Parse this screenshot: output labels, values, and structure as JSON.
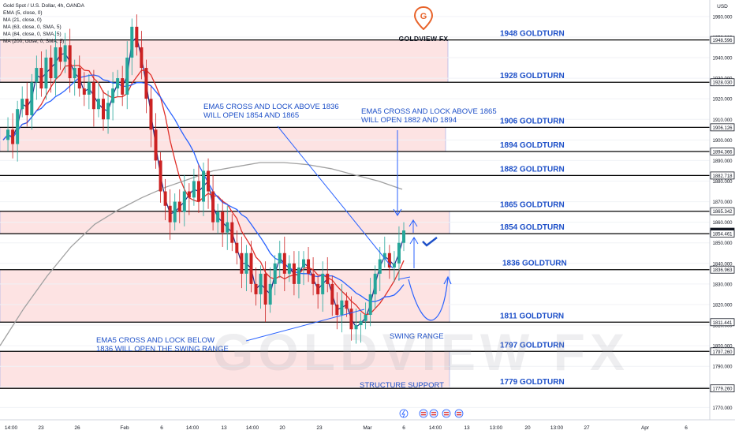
{
  "header": {
    "symbol": "Gold Spot / U.S. Dollar, 4h, OANDA",
    "indicators": [
      "EMA (5, close, 0)",
      "MA (21, close, 0)",
      "MA (63, close, 0, SMA, 5)",
      "MA (84, close, 0, SMA, 5)",
      "MA (200, close, 0, SMA, 5)"
    ],
    "currency": "USD"
  },
  "logo": {
    "text": "GOLDVIEW FX",
    "glyph": "G"
  },
  "watermark": "GOLDVIEW FX",
  "colors": {
    "bull": "#26a69a",
    "bear": "#ef5350",
    "candle": "#cc2222",
    "ema5": "#1e2a8a",
    "ma21": "#e0302a",
    "ma63": "#2962ff",
    "ma200": "#a0a0a0",
    "level": "#000000",
    "zone": "#fde3e3",
    "label": "#1e50c8"
  },
  "chart_data": {
    "type": "line",
    "title": "Gold Spot / U.S. Dollar, 4h, OANDA",
    "ylim": [
      1764,
      1968
    ],
    "y_ticks": [
      1960,
      1950,
      1940,
      1930,
      1920,
      1910,
      1900,
      1890,
      1880,
      1870,
      1860,
      1850,
      1840,
      1830,
      1820,
      1810,
      1800,
      1790,
      1780,
      1770
    ],
    "x_ticks": [
      "14:00",
      "23",
      "26",
      "Feb",
      "6",
      "14:00",
      "13",
      "14:00",
      "20",
      "23",
      "Mar",
      "6",
      "14:00",
      "13",
      "13:00",
      "20",
      "13:00",
      "27",
      "Apr",
      "6"
    ],
    "price_tags": [
      {
        "value": 1948.596,
        "label": "1948.596",
        "style": "outline"
      },
      {
        "value": 1928.03,
        "label": "1928.030",
        "style": "outline"
      },
      {
        "value": 1906.126,
        "label": "1906.126",
        "style": "outline"
      },
      {
        "value": 1894.366,
        "label": "1894.366",
        "style": "outline"
      },
      {
        "value": 1882.718,
        "label": "1882.718",
        "style": "outline"
      },
      {
        "value": 1865.342,
        "label": "1865.342",
        "style": "outline"
      },
      {
        "value": 1855.435,
        "label": "1855.435",
        "style": "dark"
      },
      {
        "value": 1854.461,
        "label": "1854.461",
        "style": "outline"
      },
      {
        "value": 1836.963,
        "label": "1836.963",
        "style": "outline"
      },
      {
        "value": 1811.441,
        "label": "1811.441",
        "style": "outline"
      },
      {
        "value": 1797.26,
        "label": "1797.260",
        "style": "outline"
      },
      {
        "value": 1779.26,
        "label": "1779.260",
        "style": "outline"
      }
    ],
    "levels": [
      {
        "value": 1948.6,
        "label": "1948 GOLDTURN"
      },
      {
        "value": 1928.03,
        "label": "1928 GOLDTURN"
      },
      {
        "value": 1906.13,
        "label": "1906 GOLDTURN"
      },
      {
        "value": 1894.37,
        "label": "1894 GOLDTURN"
      },
      {
        "value": 1882.72,
        "label": "1882 GOLDTURN"
      },
      {
        "value": 1865.34,
        "label": "1865 GOLDTURN"
      },
      {
        "value": 1854.46,
        "label": "1854 GOLDTURN"
      },
      {
        "value": 1836.96,
        "label": "1836 GOLDTURN"
      },
      {
        "value": 1811.44,
        "label": "1811 GOLDTURN"
      },
      {
        "value": 1797.26,
        "label": "1797 GOLDTURN"
      },
      {
        "value": 1779.26,
        "label": "1779 GOLDTURN"
      }
    ],
    "zones": [
      {
        "top": 1948.6,
        "bottom": 1928.03
      },
      {
        "top": 1906.13,
        "bottom": 1894.37
      },
      {
        "top": 1865.34,
        "bottom": 1854.46
      },
      {
        "top": 1836.96,
        "bottom": 1811.44
      },
      {
        "top": 1797.26,
        "bottom": 1779.26
      }
    ],
    "price_path": [
      1900,
      1905,
      1898,
      1915,
      1920,
      1912,
      1928,
      1935,
      1925,
      1940,
      1930,
      1945,
      1938,
      1946,
      1930,
      1935,
      1925,
      1922,
      1928,
      1915,
      1920,
      1910,
      1918,
      1925,
      1930,
      1922,
      1940,
      1955,
      1945,
      1935,
      1920,
      1905,
      1890,
      1875,
      1868,
      1860,
      1870,
      1865,
      1875,
      1872,
      1880,
      1870,
      1885,
      1875,
      1860,
      1865,
      1855,
      1860,
      1850,
      1845,
      1835,
      1845,
      1830,
      1825,
      1835,
      1820,
      1830,
      1840,
      1845,
      1835,
      1840,
      1830,
      1838,
      1842,
      1835,
      1830,
      1825,
      1835,
      1830,
      1820,
      1815,
      1822,
      1818,
      1808,
      1810,
      1812,
      1815,
      1825,
      1835,
      1842,
      1845,
      1838,
      1840,
      1850,
      1856
    ],
    "ma200_path": [
      1800,
      1818,
      1834,
      1848,
      1859,
      1866,
      1872,
      1877,
      1881,
      1885,
      1887,
      1889,
      1889,
      1888,
      1886,
      1883,
      1880,
      1876
    ],
    "annotations": [
      {
        "lines": [
          "EMA5 CROSS AND LOCK ABOVE 1836",
          "WILL OPEN  1854 AND 1865"
        ]
      },
      {
        "lines": [
          "EMA5 CROSS AND LOCK ABOVE 1865",
          "WILL OPEN  1882 AND 1894"
        ]
      },
      {
        "lines": [
          "EMA5 CROSS AND LOCK BELOW",
          "1836 WILL OPEN THE SWING RANGE"
        ]
      },
      {
        "lines": [
          "SWING RANGE"
        ]
      },
      {
        "lines": [
          "STRUCTURE SUPPORT"
        ]
      }
    ]
  }
}
